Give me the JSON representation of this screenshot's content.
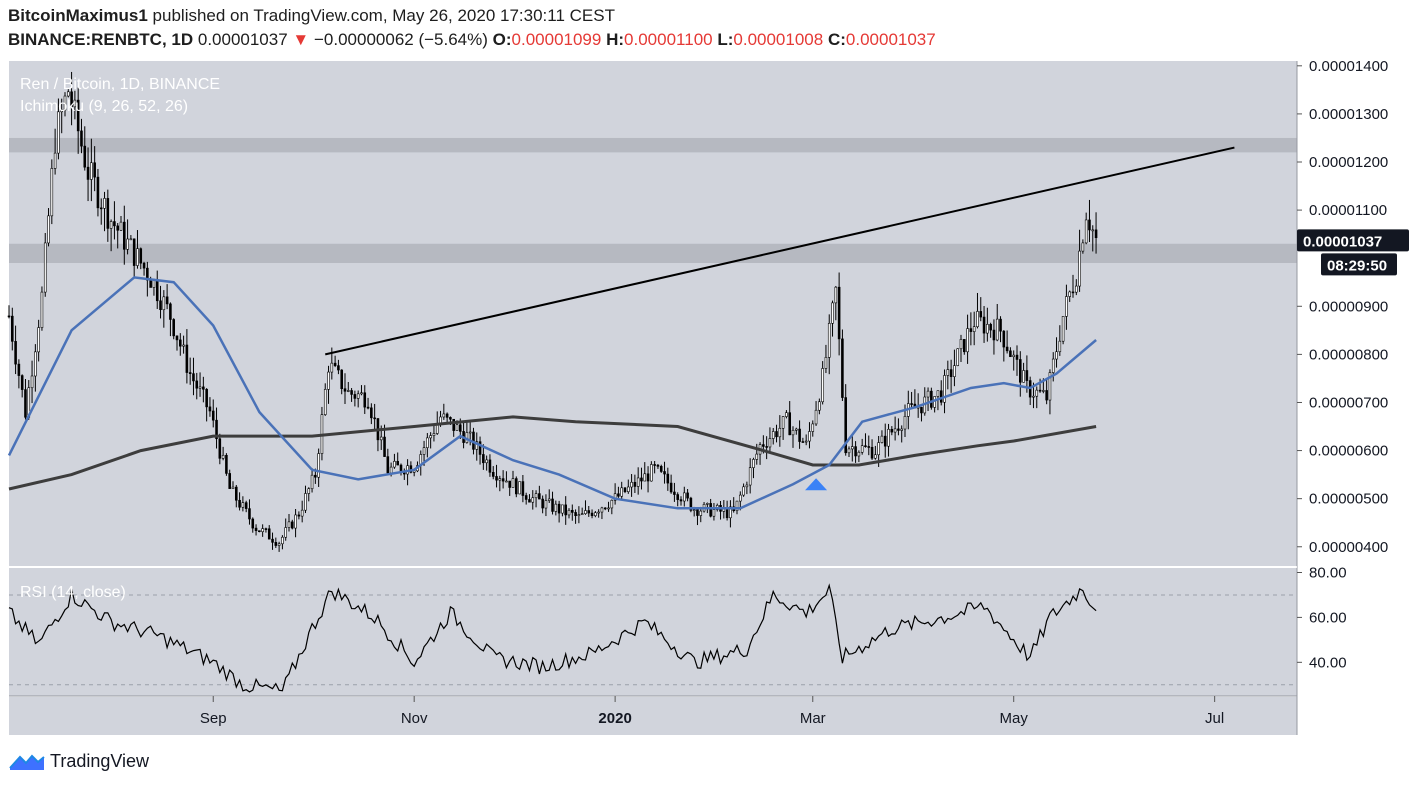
{
  "header": {
    "author": "BitcoinMaximus1",
    "published": "published on TradingView.com, May 26, 2020 17:30:11 CEST",
    "symbol": "BINANCE:RENBTC, 1D",
    "last": "0.00001037",
    "arrow": "▼",
    "change": "−0.00000062 (−5.64%)",
    "o_label": "O:",
    "o_value": "0.00001099",
    "h_label": "H:",
    "h_value": "0.00001100",
    "l_label": "L:",
    "l_value": "0.00001008",
    "c_label": "C:",
    "c_value": "0.00001037"
  },
  "legend": {
    "title": "Ren / Bitcoin, 1D, BINANCE",
    "indicator": "Ichimoku (9, 26, 52, 26)",
    "rsi": "RSI (14, close)"
  },
  "price_axis": {
    "labels": [
      "0.00001400",
      "0.00001300",
      "0.00001200",
      "0.00001100",
      "0.00000900",
      "0.00000800",
      "0.00000700",
      "0.00000600",
      "0.00000500",
      "0.00000400"
    ],
    "last_price_tag": "0.00001037",
    "countdown_tag": "08:29:50"
  },
  "rsi_axis": {
    "labels": [
      "80.00",
      "60.00",
      "40.00"
    ]
  },
  "time_axis": {
    "labels": [
      "Sep",
      "Nov",
      "2020",
      "Mar",
      "May",
      "Jul"
    ]
  },
  "brand": {
    "name": "TradingView"
  },
  "colors": {
    "plot_bg": "#d1d4dc",
    "zone": "#b6b9c1",
    "blue_line": "#4a72b8",
    "gray_line": "#3d3d3d",
    "down_red": "#e53935",
    "marker": "#3b82f6"
  },
  "chart_data": [
    {
      "type": "candlestick",
      "title": "Ren / Bitcoin, 1D, BINANCE",
      "ylim": [
        3.6e-06,
        1.41e-05
      ],
      "resistance_zones": [
        [
          1.22e-05,
          1.25e-05
        ],
        [
          9.9e-06,
          1.03e-05
        ]
      ],
      "trendline": [
        [
          "2019-10-05",
          8e-06
        ],
        [
          "2020-07-07",
          1.23e-05
        ]
      ],
      "marker": {
        "date": "2020-03-02",
        "shape": "triangle-up",
        "price": 5.3e-06
      },
      "close_path": [
        [
          "2019-07-01",
          8.8e-06
        ],
        [
          "2019-07-06",
          6.8e-06
        ],
        [
          "2019-07-11",
          9.2e-06
        ],
        [
          "2019-07-15",
          1.25e-05
        ],
        [
          "2019-07-19",
          1.35e-05
        ],
        [
          "2019-07-25",
          1.18e-05
        ],
        [
          "2019-08-01",
          1.08e-05
        ],
        [
          "2019-08-07",
          1.02e-05
        ],
        [
          "2019-08-13",
          9.6e-06
        ],
        [
          "2019-08-19",
          8.8e-06
        ],
        [
          "2019-08-25",
          7.6e-06
        ],
        [
          "2019-08-31",
          6.8e-06
        ],
        [
          "2019-09-06",
          5.2e-06
        ],
        [
          "2019-09-14",
          4.4e-06
        ],
        [
          "2019-09-21",
          4.1e-06
        ],
        [
          "2019-09-27",
          4.7e-06
        ],
        [
          "2019-10-02",
          5.5e-06
        ],
        [
          "2019-10-06",
          7.8e-06
        ],
        [
          "2019-10-12",
          7.2e-06
        ],
        [
          "2019-10-18",
          7.1e-06
        ],
        [
          "2019-10-24",
          5.6e-06
        ],
        [
          "2019-11-01",
          5.7e-06
        ],
        [
          "2019-11-09",
          6.7e-06
        ],
        [
          "2019-11-17",
          6.3e-06
        ],
        [
          "2019-11-25",
          5.6e-06
        ],
        [
          "2019-12-07",
          5e-06
        ],
        [
          "2019-12-21",
          4.6e-06
        ],
        [
          "2020-01-01",
          5e-06
        ],
        [
          "2020-01-13",
          5.6e-06
        ],
        [
          "2020-01-25",
          4.8e-06
        ],
        [
          "2020-02-06",
          4.7e-06
        ],
        [
          "2020-02-14",
          6.1e-06
        ],
        [
          "2020-02-22",
          6.6e-06
        ],
        [
          "2020-02-28",
          6.1e-06
        ],
        [
          "2020-03-04",
          7.5e-06
        ],
        [
          "2020-03-08",
          9.3e-06
        ],
        [
          "2020-03-11",
          6.1e-06
        ],
        [
          "2020-03-20",
          6e-06
        ],
        [
          "2020-03-30",
          6.8e-06
        ],
        [
          "2020-04-09",
          7.2e-06
        ],
        [
          "2020-04-19",
          8.7e-06
        ],
        [
          "2020-04-27",
          8.5e-06
        ],
        [
          "2020-05-05",
          7.3e-06
        ],
        [
          "2020-05-11",
          7.1e-06
        ],
        [
          "2020-05-16",
          8.8e-06
        ],
        [
          "2020-05-20",
          9.7e-06
        ],
        [
          "2020-05-23",
          1.1e-05
        ],
        [
          "2020-05-26",
          1.037e-05
        ]
      ],
      "kijun_path": [
        [
          "2019-07-01",
          5.9e-06
        ],
        [
          "2019-07-20",
          8.5e-06
        ],
        [
          "2019-08-08",
          9.6e-06
        ],
        [
          "2019-08-20",
          9.5e-06
        ],
        [
          "2019-09-01",
          8.6e-06
        ],
        [
          "2019-09-15",
          6.8e-06
        ],
        [
          "2019-10-01",
          5.6e-06
        ],
        [
          "2019-10-15",
          5.4e-06
        ],
        [
          "2019-11-01",
          5.6e-06
        ],
        [
          "2019-11-15",
          6.3e-06
        ],
        [
          "2019-12-01",
          5.8e-06
        ],
        [
          "2019-12-15",
          5.5e-06
        ],
        [
          "2020-01-01",
          5e-06
        ],
        [
          "2020-01-20",
          4.8e-06
        ],
        [
          "2020-02-08",
          4.8e-06
        ],
        [
          "2020-02-24",
          5.3e-06
        ],
        [
          "2020-03-06",
          5.7e-06
        ],
        [
          "2020-03-16",
          6.6e-06
        ],
        [
          "2020-04-01",
          6.9e-06
        ],
        [
          "2020-04-18",
          7.3e-06
        ],
        [
          "2020-04-28",
          7.4e-06
        ],
        [
          "2020-05-06",
          7.3e-06
        ],
        [
          "2020-05-14",
          7.6e-06
        ],
        [
          "2020-05-26",
          8.3e-06
        ]
      ],
      "senkou_b_path": [
        [
          "2019-07-01",
          5.2e-06
        ],
        [
          "2019-07-20",
          5.5e-06
        ],
        [
          "2019-08-10",
          6e-06
        ],
        [
          "2019-09-01",
          6.3e-06
        ],
        [
          "2019-10-01",
          6.3e-06
        ],
        [
          "2019-11-01",
          6.5e-06
        ],
        [
          "2019-12-01",
          6.7e-06
        ],
        [
          "2019-12-20",
          6.6e-06
        ],
        [
          "2020-01-20",
          6.5e-06
        ],
        [
          "2020-02-15",
          6e-06
        ],
        [
          "2020-03-01",
          5.7e-06
        ],
        [
          "2020-03-15",
          5.7e-06
        ],
        [
          "2020-04-01",
          5.9e-06
        ],
        [
          "2020-04-20",
          6.1e-06
        ],
        [
          "2020-05-01",
          6.2e-06
        ],
        [
          "2020-05-26",
          6.5e-06
        ]
      ]
    },
    {
      "type": "line",
      "title": "RSI (14, close)",
      "ylim": [
        25,
        82
      ],
      "reference_lines": [
        30,
        70
      ],
      "x": [
        "2019-07-01",
        "2019-07-10",
        "2019-07-20",
        "2019-08-01",
        "2019-08-15",
        "2019-09-01",
        "2019-09-10",
        "2019-09-22",
        "2019-10-01",
        "2019-10-07",
        "2019-10-20",
        "2019-11-01",
        "2019-11-12",
        "2019-11-25",
        "2019-12-10",
        "2019-12-25",
        "2020-01-10",
        "2020-01-25",
        "2020-02-10",
        "2020-02-18",
        "2020-02-28",
        "2020-03-06",
        "2020-03-10",
        "2020-03-25",
        "2020-04-10",
        "2020-04-22",
        "2020-05-06",
        "2020-05-12",
        "2020-05-22",
        "2020-05-26"
      ],
      "values": [
        62,
        48,
        70,
        58,
        52,
        40,
        30,
        27,
        55,
        72,
        60,
        40,
        62,
        42,
        38,
        44,
        58,
        40,
        46,
        70,
        62,
        72,
        42,
        55,
        60,
        65,
        42,
        60,
        73,
        63
      ]
    }
  ]
}
